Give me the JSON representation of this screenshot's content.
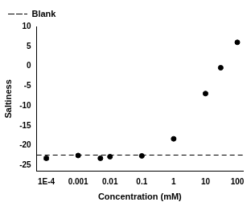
{
  "chart_data": {
    "type": "scatter",
    "x_label": "Concentration (mM)",
    "y_label": "Saltiness",
    "x": [
      0.0001,
      0.001,
      0.005,
      0.01,
      0.1,
      1,
      10,
      30,
      100
    ],
    "values": [
      -23.2,
      -22.5,
      -23.2,
      -22.8,
      -22.6,
      -18.3,
      -6.9,
      -0.4,
      6.0
    ],
    "errors": [
      0.4,
      0.3,
      0.3,
      0.2,
      0.2,
      0.2,
      0.2,
      0.2,
      0.2
    ],
    "color": "#000000",
    "marker": "circle",
    "blank": {
      "name": "Blank",
      "value": -22.4,
      "line_style": "dashed",
      "color": "#000000"
    },
    "log": "x",
    "xlim": [
      5e-05,
      150
    ],
    "xticks": [
      {
        "value": 0.0001,
        "label": "1E-4"
      },
      0.001,
      0.01,
      0.1,
      1,
      10,
      100
    ],
    "ylim": [
      -26.5,
      10
    ],
    "yticks": [
      -25,
      -20,
      -15,
      -10,
      -5,
      0,
      5,
      10
    ],
    "grid": false,
    "legend": "upper left"
  }
}
